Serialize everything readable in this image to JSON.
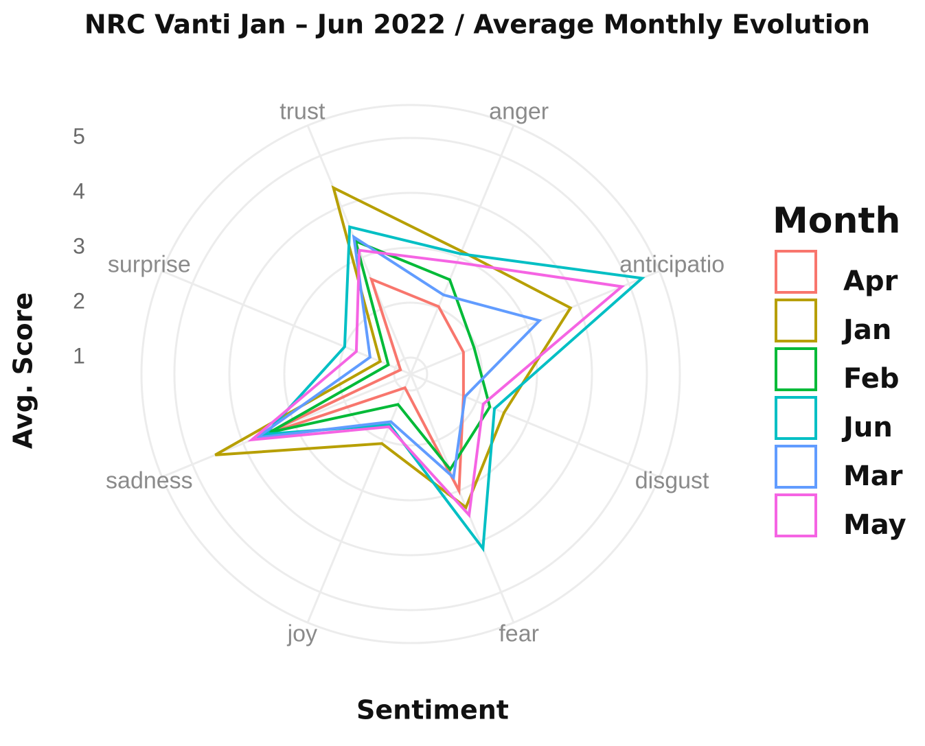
{
  "chart_data": {
    "type": "radar",
    "title": "NRC Vanti Jan – Jun 2022 / Average Monthly Evolution",
    "x_label": "Sentiment",
    "y_label": "Avg. Score",
    "legend_title": "Month",
    "categories": [
      "trust",
      "anger",
      "anticipatio",
      "disgust",
      "fear",
      "joy",
      "sadness",
      "surprise"
    ],
    "ylim": [
      0.7,
      5.6
    ],
    "yticks": [
      1,
      2,
      3,
      4,
      5
    ],
    "grid": true,
    "series": [
      {
        "name": "Apr",
        "color": "#F8766D",
        "values": [
          2.57,
          2.03,
          1.74,
          1.74,
          3.0,
          0.97,
          3.64,
          0.9
        ]
      },
      {
        "name": "Jan",
        "color": "#B79F00",
        "values": [
          4.37,
          3.12,
          3.85,
          2.54,
          3.33,
          2.07,
          4.55,
          1.3
        ]
      },
      {
        "name": "Feb",
        "color": "#00BA38",
        "values": [
          3.32,
          2.56,
          1.95,
          2.26,
          2.58,
          1.3,
          3.48,
          1.14
        ]
      },
      {
        "name": "Jun",
        "color": "#00BFC4",
        "values": [
          3.6,
          3.07,
          5.26,
          2.35,
          4.14,
          1.7,
          3.56,
          2.0
        ]
      },
      {
        "name": "Mar",
        "color": "#619CFF",
        "values": [
          3.4,
          2.26,
          3.24,
          1.77,
          2.74,
          1.64,
          3.73,
          1.5
        ]
      },
      {
        "name": "May",
        "color": "#F564E3",
        "values": [
          3.14,
          2.9,
          4.86,
          2.13,
          3.48,
          1.74,
          3.83,
          1.77
        ]
      }
    ]
  }
}
